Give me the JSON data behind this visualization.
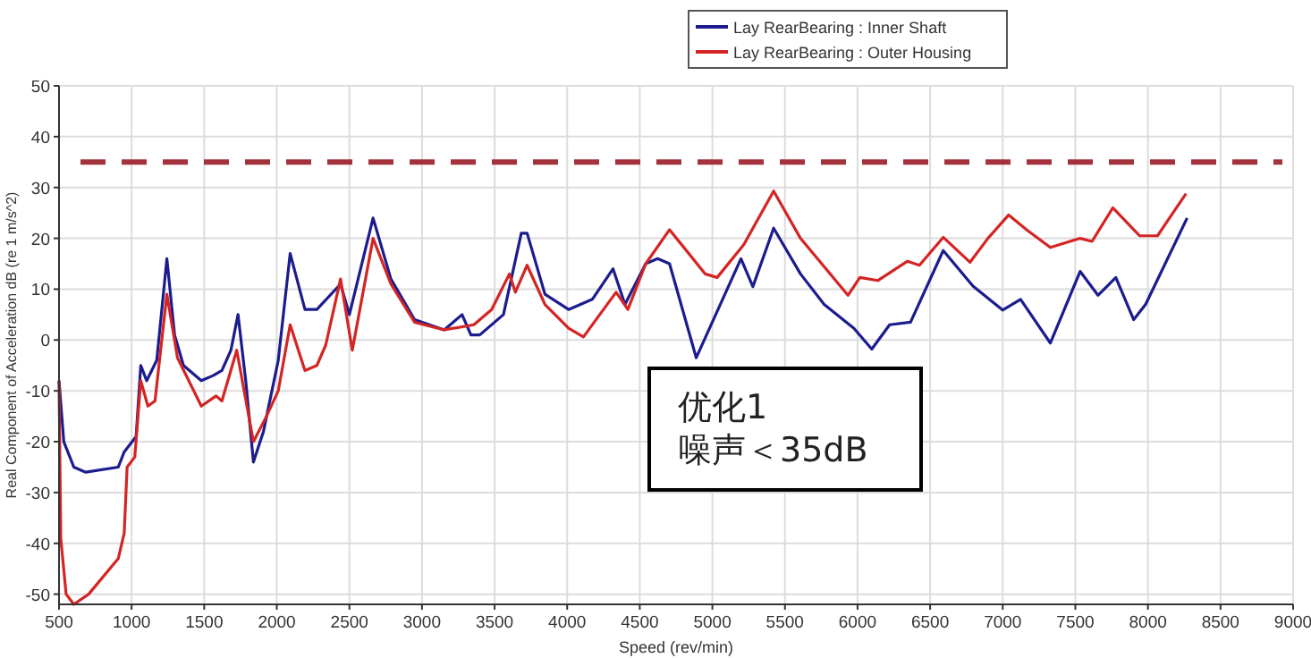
{
  "chart_data": {
    "type": "line",
    "xlabel": "Speed (rev/min)",
    "ylabel": "Real Component of Acceleration dB (re 1 m/s^2)",
    "xlim": [
      500,
      9000
    ],
    "ylim": [
      -52,
      50
    ],
    "xticks": [
      500,
      1000,
      1500,
      2000,
      2500,
      3000,
      3500,
      4000,
      4500,
      5000,
      5500,
      6000,
      6500,
      7000,
      7500,
      8000,
      8500,
      9000
    ],
    "yticks": [
      -50,
      -40,
      -30,
      -20,
      -10,
      0,
      10,
      20,
      30,
      40,
      50
    ],
    "grid": true,
    "legend": "top",
    "line_style": "solid",
    "marker": "none",
    "ref_lines": [
      {
        "axis": "y",
        "value": 35,
        "color": "#a3323c",
        "line_style": "dashed"
      }
    ],
    "annotations": [
      "优化1\n噪声＜35dB"
    ],
    "series": [
      {
        "name": "Lay RearBearing : Inner Shaft",
        "color": "#1c1c8e",
        "x": [
          500,
          533,
          602,
          684,
          908,
          949,
          1031,
          1063,
          1104,
          1173,
          1243,
          1296,
          1357,
          1480,
          1561,
          1622,
          1684,
          1733,
          1786,
          1839,
          1908,
          2010,
          2092,
          2194,
          2276,
          2439,
          2500,
          2663,
          2786,
          2949,
          3153,
          3276,
          3337,
          3398,
          3561,
          3684,
          3724,
          3847,
          4010,
          4173,
          4316,
          4398,
          4541,
          4623,
          4705,
          4889,
          5197,
          5279,
          5422,
          5607,
          5770,
          5975,
          6098,
          6221,
          6365,
          6590,
          6795,
          6999,
          7123,
          7328,
          7533,
          7656,
          7779,
          7902,
          7984,
          8270
        ],
        "values": [
          -8,
          -20,
          -25,
          -26,
          -25,
          -22,
          -19,
          -5,
          -8,
          -4,
          16,
          1,
          -5,
          -8,
          -7,
          -6,
          -2,
          5,
          -8,
          -24,
          -18,
          -4,
          17,
          6,
          6,
          11,
          5,
          24,
          12,
          4,
          2,
          5,
          1,
          1,
          5,
          21,
          21,
          9,
          6,
          8,
          14,
          7,
          15,
          16,
          15,
          -3.5,
          16,
          10.5,
          22,
          13,
          7,
          2.3,
          -1.8,
          3,
          3.5,
          17.6,
          10.6,
          5.9,
          8,
          -0.6,
          13.5,
          8.8,
          12.3,
          4,
          7,
          24
        ]
      },
      {
        "name": "Lay RearBearing : Outer Housing",
        "color": "#d42424",
        "x": [
          500,
          512,
          549,
          602,
          704,
          908,
          949,
          969,
          1022,
          1063,
          1112,
          1161,
          1243,
          1316,
          1480,
          1582,
          1622,
          1724,
          1839,
          1929,
          2010,
          2092,
          2194,
          2276,
          2337,
          2439,
          2520,
          2663,
          2786,
          2949,
          3153,
          3357,
          3480,
          3602,
          3643,
          3724,
          3847,
          4010,
          4112,
          4337,
          4418,
          4541,
          4705,
          4951,
          5033,
          5217,
          5422,
          5607,
          5934,
          6016,
          6139,
          6344,
          6426,
          6590,
          6775,
          6898,
          7041,
          7164,
          7328,
          7533,
          7615,
          7758,
          7943,
          8066,
          8262
        ],
        "values": [
          -8,
          -39,
          -50,
          -52,
          -50,
          -43,
          -38,
          -25,
          -23,
          -8,
          -13,
          -12,
          9,
          -3.5,
          -13,
          -11,
          -12,
          -2,
          -20,
          -15,
          -10,
          3,
          -6,
          -5,
          -1,
          12,
          -2,
          20,
          11,
          3.5,
          2,
          3,
          6,
          13,
          9.4,
          14.7,
          7,
          2.3,
          0.6,
          9.4,
          6,
          15,
          21.7,
          13,
          12.3,
          18.8,
          29.3,
          20,
          8.8,
          12.3,
          11.7,
          15.5,
          14.7,
          20.2,
          15.3,
          20,
          24.6,
          21.7,
          18.2,
          20,
          19.4,
          26,
          20.5,
          20.5,
          28.8
        ]
      }
    ]
  }
}
